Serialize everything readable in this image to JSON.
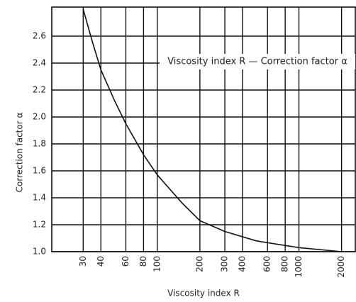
{
  "chart_data": {
    "type": "line",
    "annotation": "Viscosity index R — Correction factor α",
    "xlabel": "Viscosity index R",
    "ylabel": "Correction factor α",
    "x_log": true,
    "grid": true,
    "xlim": [
      18,
      2500
    ],
    "xticks": [
      30,
      40,
      60,
      80,
      100,
      200,
      300,
      400,
      600,
      800,
      1000,
      2000
    ],
    "ylim": [
      1.0,
      2.8
    ],
    "yticks": [
      {
        "value": 1.0,
        "label": "1.0"
      },
      1.2,
      1.4,
      1.6,
      1.8,
      {
        "value": 2.0,
        "label": "2.0"
      },
      2.2,
      2.4,
      2.6
    ],
    "series": [
      {
        "name": "Viscosity index R — Correction factor α",
        "color": "#111",
        "x": [
          30,
          35,
          40,
          50,
          60,
          80,
          100,
          150,
          200,
          300,
          500,
          1000,
          2000
        ],
        "values": [
          2.8,
          2.55,
          2.35,
          2.12,
          1.95,
          1.72,
          1.57,
          1.36,
          1.23,
          1.15,
          1.08,
          1.03,
          1.0
        ]
      }
    ]
  }
}
